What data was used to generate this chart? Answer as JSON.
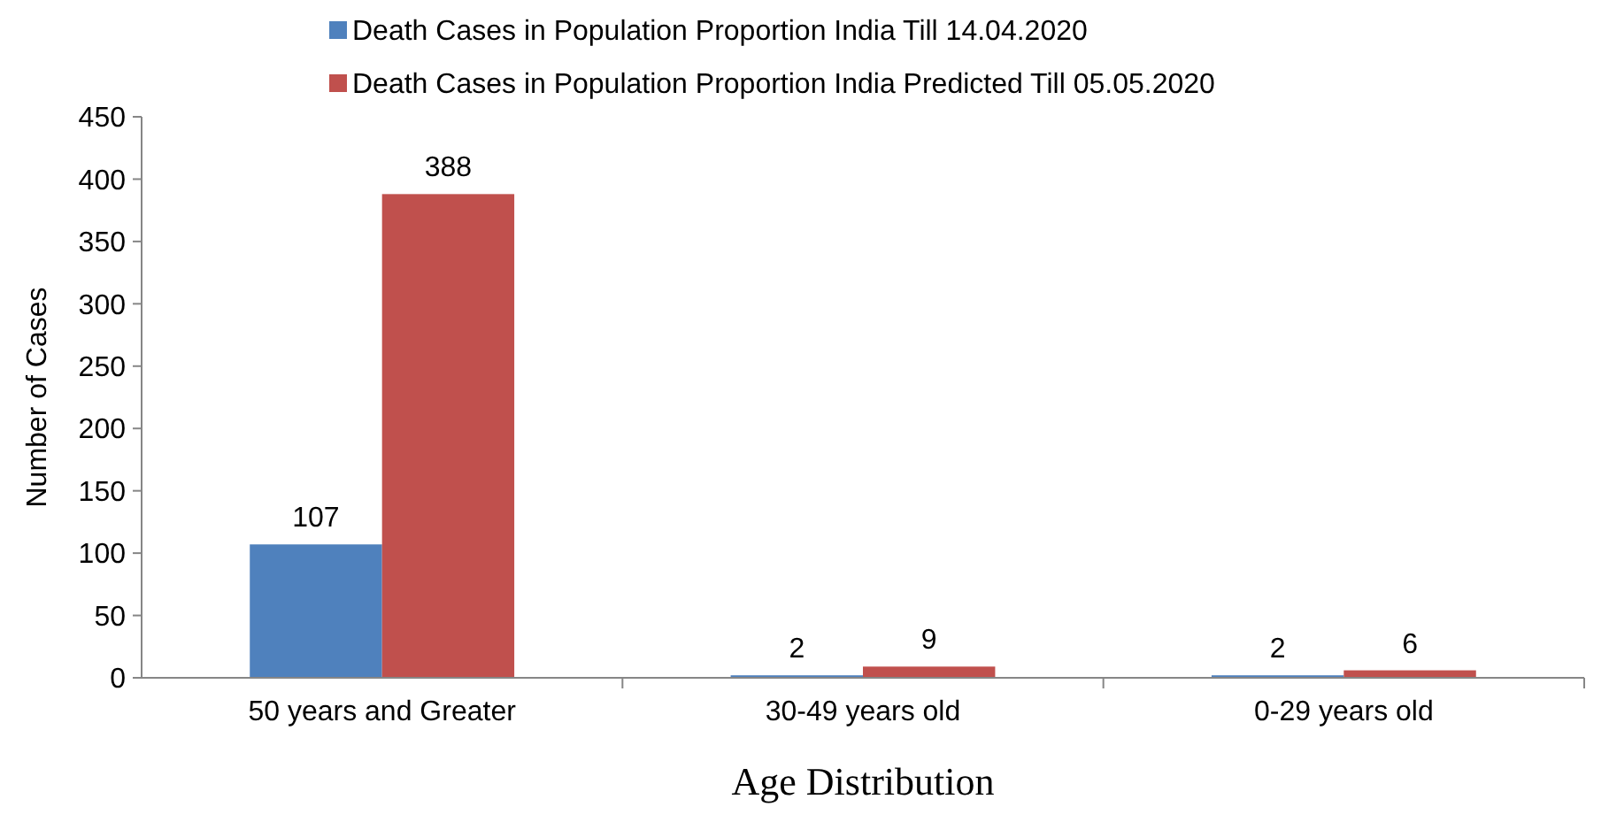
{
  "chart_data": {
    "type": "bar",
    "xlabel": "Age Distribution",
    "ylabel": "Number of Cases",
    "categories": [
      "50 years and Greater",
      "30-49 years old",
      "0-29 years old"
    ],
    "series": [
      {
        "name": "Death Cases in Population Proportion India Till 14.04.2020",
        "color": "#4f81bd",
        "values": [
          107,
          2,
          2
        ]
      },
      {
        "name": "Death Cases in Population Proportion India Predicted Till 05.05.2020",
        "color": "#c0504d",
        "values": [
          388,
          9,
          6
        ]
      }
    ],
    "ylim": [
      0,
      450
    ],
    "yticks": [
      0,
      50,
      100,
      150,
      200,
      250,
      300,
      350,
      400,
      450
    ],
    "data_labels": true,
    "legend": "top",
    "grid": false
  }
}
